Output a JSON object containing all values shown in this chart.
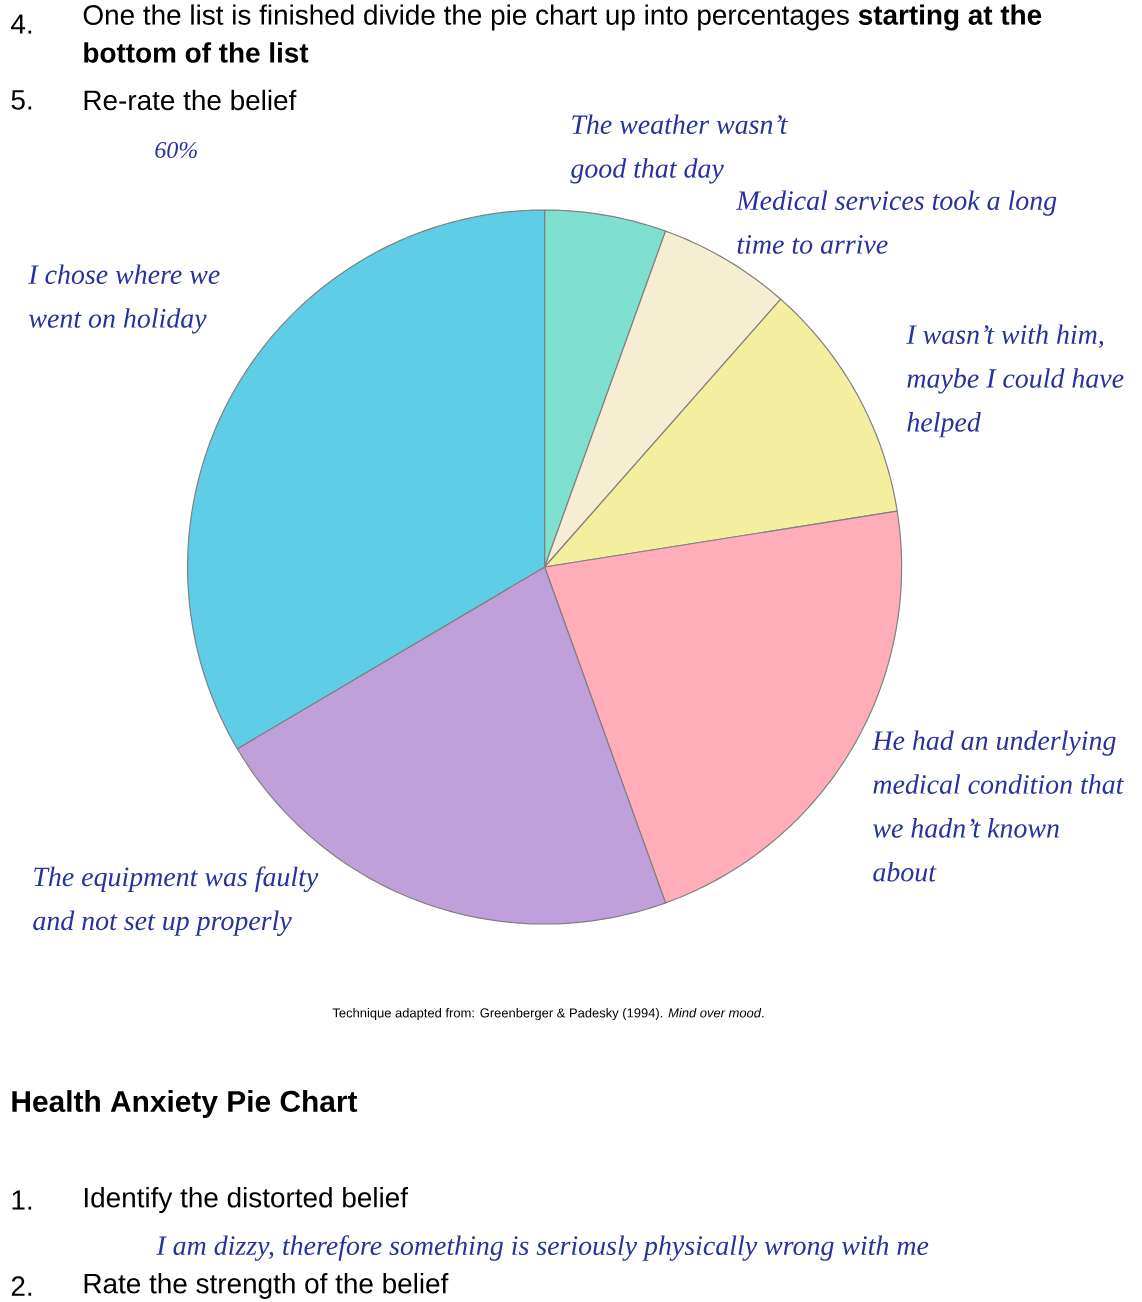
{
  "chart_data": {
    "type": "pie",
    "categories": [
      "The weather wasn’t good that day",
      "Medical services took a long time to arrive",
      "I wasn’t with him, maybe I could have helped",
      "He had an underlying medical condition that we hadn’t known about",
      "The equipment was faulty and not set up properly",
      "I chose where we went on holiday"
    ],
    "values": [
      5.5,
      6,
      11,
      22,
      22,
      33.5
    ],
    "colors": [
      "#7fe0cf",
      "#f5eed3",
      "#f3ef9f",
      "#ffadb9",
      "#c0a0da",
      "#5ecde5"
    ],
    "annotations": [
      "4.",
      "One the list is finished divide the pie chart up into percentages **starting at the bottom of the list**",
      "5.",
      "Re-rate the belief",
      "60%",
      "Technique adapted from: Greenberger & Padesky (1994). *Mind over mood*.",
      "Health Anxiety Pie Chart",
      "1.",
      "Identify the distorted belief",
      "I am dizzy, therefore something is seriously physically wrong with me",
      "2.",
      "Rate the strength of the belief"
    ]
  }
}
